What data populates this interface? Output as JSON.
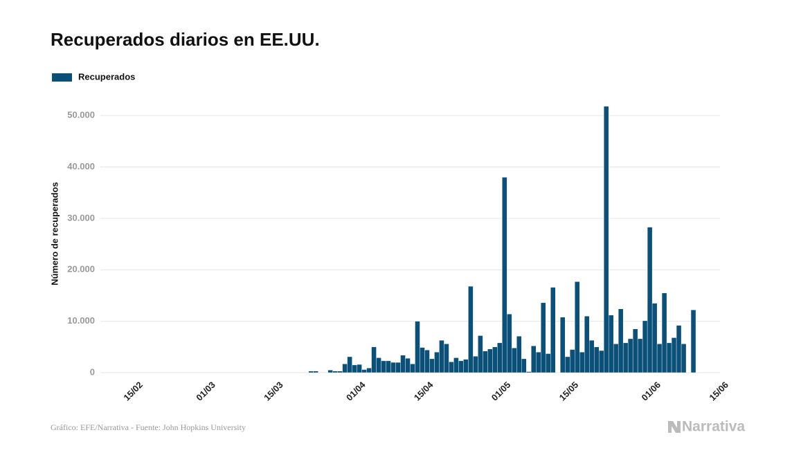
{
  "chart_data": {
    "type": "bar",
    "title": "Recuperados diarios en EE.UU.",
    "y_label": "Número de recuperados",
    "source": "Gráfico: EFE/Narrativa - Fuente: John Hopkins University",
    "brand": "Narrativa",
    "categories": [
      null,
      null,
      null,
      null,
      null,
      null,
      "15/02",
      null,
      null,
      null,
      null,
      null,
      null,
      null,
      null,
      null,
      null,
      null,
      null,
      null,
      null,
      "01/03",
      null,
      null,
      null,
      null,
      null,
      null,
      null,
      null,
      null,
      null,
      null,
      null,
      null,
      "15/03",
      null,
      null,
      null,
      null,
      null,
      null,
      null,
      null,
      null,
      null,
      null,
      null,
      null,
      null,
      null,
      null,
      "01/04",
      null,
      null,
      null,
      null,
      null,
      null,
      null,
      null,
      null,
      null,
      null,
      null,
      null,
      "15/04",
      null,
      null,
      null,
      null,
      null,
      null,
      null,
      null,
      null,
      null,
      null,
      null,
      null,
      null,
      null,
      "01/05",
      null,
      null,
      null,
      null,
      null,
      null,
      null,
      null,
      null,
      null,
      null,
      null,
      null,
      "15/05",
      null,
      null,
      null,
      null,
      null,
      null,
      null,
      null,
      null,
      null,
      null,
      null,
      null,
      null,
      null,
      null,
      "01/06",
      null,
      null,
      null,
      null,
      null,
      null,
      null,
      null,
      null,
      null,
      null,
      null,
      null,
      "15/06"
    ],
    "series": [
      {
        "name": "Recuperados",
        "color": "#0a5078",
        "values": [
          0,
          0,
          0,
          0,
          0,
          0,
          0,
          0,
          0,
          0,
          0,
          0,
          0,
          0,
          0,
          0,
          0,
          0,
          0,
          0,
          0,
          0,
          0,
          0,
          0,
          0,
          0,
          0,
          0,
          0,
          0,
          0,
          0,
          0,
          0,
          0,
          0,
          0,
          0,
          0,
          0,
          0,
          0,
          300,
          300,
          0,
          0,
          500,
          300,
          300,
          1700,
          3100,
          1500,
          1600,
          600,
          900,
          5000,
          2900,
          2300,
          2300,
          2000,
          2000,
          3400,
          2800,
          1700,
          10000,
          4900,
          4400,
          2700,
          4000,
          6300,
          5600,
          2100,
          2900,
          2300,
          2600,
          16800,
          3200,
          7200,
          4200,
          4600,
          5000,
          5800,
          38000,
          11400,
          4800,
          7100,
          2700,
          200,
          5200,
          4000,
          13600,
          3700,
          16600,
          0,
          10800,
          3100,
          4500,
          17700,
          4000,
          11000,
          6300,
          5000,
          4300,
          51800,
          11200,
          5600,
          12400,
          5800,
          6600,
          8500,
          6600,
          10100,
          28300,
          13500,
          5600,
          15500,
          5800,
          6800,
          9200,
          5600,
          0,
          12200,
          null,
          null,
          null,
          null,
          null
        ]
      }
    ],
    "ylim": [
      0,
      55000
    ],
    "yticks": [
      0,
      {
        "value": 10000,
        "label": "10.000"
      },
      {
        "value": 20000,
        "label": "20.000"
      },
      {
        "value": 30000,
        "label": "30.000"
      },
      {
        "value": 40000,
        "label": "40.000"
      },
      {
        "value": 50000,
        "label": "50.000"
      }
    ],
    "grid": true
  }
}
